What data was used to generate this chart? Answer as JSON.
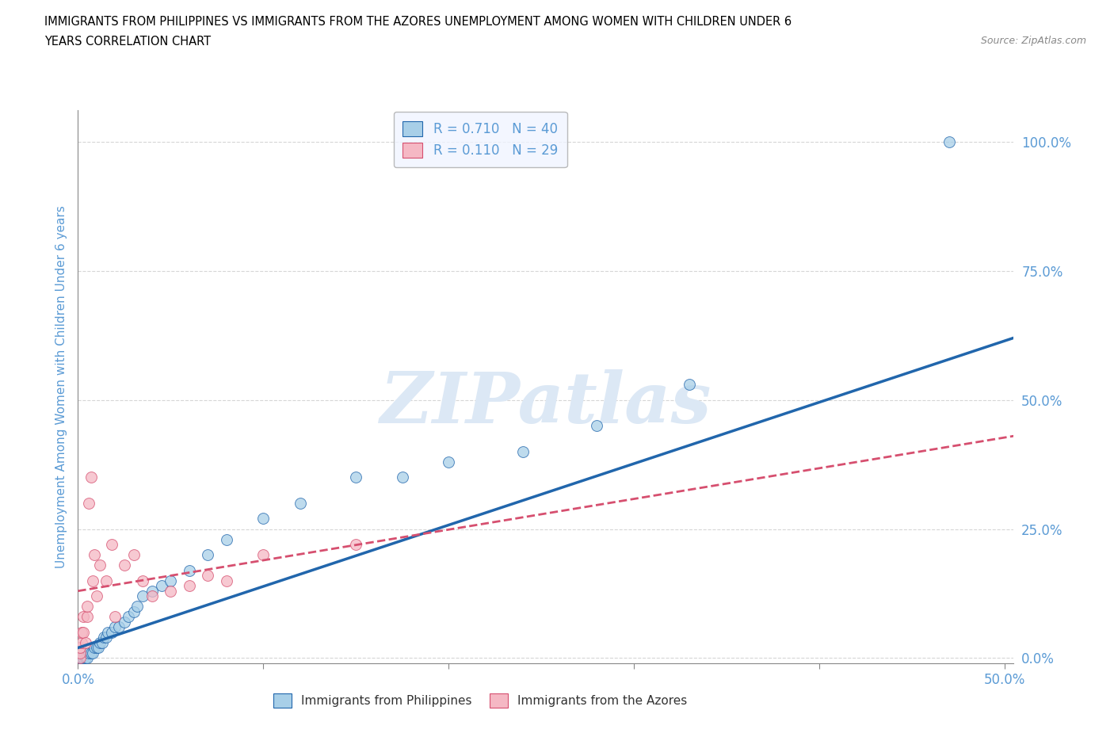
{
  "title_line1": "IMMIGRANTS FROM PHILIPPINES VS IMMIGRANTS FROM THE AZORES UNEMPLOYMENT AMONG WOMEN WITH CHILDREN UNDER 6",
  "title_line2": "YEARS CORRELATION CHART",
  "source_text": "Source: ZipAtlas.com",
  "ylabel": "Unemployment Among Women with Children Under 6 years",
  "xlim": [
    0.0,
    0.505
  ],
  "ylim": [
    -0.01,
    1.06
  ],
  "yticks": [
    0.0,
    0.25,
    0.5,
    0.75,
    1.0
  ],
  "ytick_labels": [
    "0.0%",
    "25.0%",
    "50.0%",
    "75.0%",
    "100.0%"
  ],
  "xticks": [
    0.0,
    0.1,
    0.2,
    0.3,
    0.4,
    0.5
  ],
  "xtick_labels": [
    "0.0%",
    "",
    "",
    "",
    "",
    "50.0%"
  ],
  "r_philippines": 0.71,
  "n_philippines": 40,
  "r_azores": 0.11,
  "n_azores": 29,
  "philippines_color": "#a8cfe8",
  "azores_color": "#f5b8c4",
  "trendline_philippines_color": "#2166ac",
  "trendline_azores_color": "#d64f6f",
  "background_color": "#ffffff",
  "grid_color": "#cccccc",
  "axis_label_color": "#5b9bd5",
  "tick_label_color": "#5b9bd5",
  "watermark_color": "#dce8f5",
  "watermark_text": "ZIPatlas",
  "philippines_scatter_x": [
    0.001,
    0.001,
    0.002,
    0.003,
    0.004,
    0.005,
    0.006,
    0.007,
    0.008,
    0.009,
    0.01,
    0.011,
    0.012,
    0.013,
    0.014,
    0.015,
    0.016,
    0.018,
    0.02,
    0.022,
    0.025,
    0.027,
    0.03,
    0.032,
    0.035,
    0.04,
    0.045,
    0.05,
    0.06,
    0.07,
    0.08,
    0.1,
    0.12,
    0.15,
    0.175,
    0.2,
    0.24,
    0.28,
    0.33,
    0.47
  ],
  "philippines_scatter_y": [
    0.0,
    0.0,
    0.0,
    0.0,
    0.0,
    0.0,
    0.01,
    0.01,
    0.01,
    0.02,
    0.02,
    0.02,
    0.03,
    0.03,
    0.04,
    0.04,
    0.05,
    0.05,
    0.06,
    0.06,
    0.07,
    0.08,
    0.09,
    0.1,
    0.12,
    0.13,
    0.14,
    0.15,
    0.17,
    0.2,
    0.23,
    0.27,
    0.3,
    0.35,
    0.35,
    0.38,
    0.4,
    0.45,
    0.53,
    1.0
  ],
  "azores_scatter_x": [
    0.001,
    0.001,
    0.001,
    0.002,
    0.002,
    0.003,
    0.003,
    0.004,
    0.005,
    0.005,
    0.006,
    0.007,
    0.008,
    0.009,
    0.01,
    0.012,
    0.015,
    0.018,
    0.02,
    0.025,
    0.03,
    0.035,
    0.04,
    0.05,
    0.06,
    0.07,
    0.08,
    0.1,
    0.15
  ],
  "azores_scatter_y": [
    0.0,
    0.01,
    0.02,
    0.03,
    0.05,
    0.05,
    0.08,
    0.03,
    0.08,
    0.1,
    0.3,
    0.35,
    0.15,
    0.2,
    0.12,
    0.18,
    0.15,
    0.22,
    0.08,
    0.18,
    0.2,
    0.15,
    0.12,
    0.13,
    0.14,
    0.16,
    0.15,
    0.2,
    0.22
  ],
  "legend_box_color": "#f0f4ff",
  "legend_border_color": "#aaaaaa",
  "trendline_ph_x0": 0.0,
  "trendline_ph_y0": 0.02,
  "trendline_ph_x1": 0.505,
  "trendline_ph_y1": 0.62,
  "trendline_az_x0": 0.0,
  "trendline_az_y0": 0.13,
  "trendline_az_x1": 0.505,
  "trendline_az_y1": 0.43
}
